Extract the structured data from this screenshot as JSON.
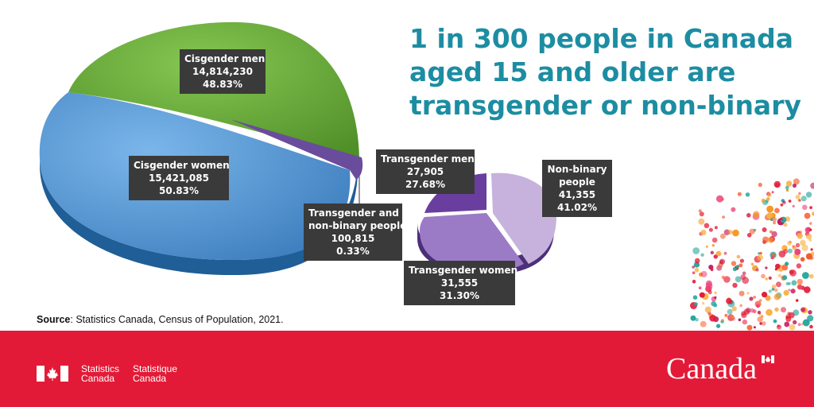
{
  "headline": {
    "line1": "1 in 300 people in Canada",
    "line2": "aged 15 and older are",
    "line3": "transgender or non-binary"
  },
  "chart_data": [
    {
      "type": "pie",
      "slices": [
        {
          "name": "Cisgender men",
          "value": 14814230,
          "value_label": "14,814,230",
          "percent": 48.83,
          "percent_label": "48.83%",
          "color": "#6fac3e"
        },
        {
          "name": "Cisgender women",
          "value": 15421085,
          "value_label": "15,421,085",
          "percent": 50.83,
          "percent_label": "50.83%",
          "color": "#5b9bd6"
        },
        {
          "name_lines": [
            "Transgender and",
            "non-binary people"
          ],
          "value": 100815,
          "value_label": "100,815",
          "percent": 0.33,
          "percent_label": "0.33%",
          "color": "#6a4c9c"
        }
      ]
    },
    {
      "type": "pie",
      "slices": [
        {
          "name": "Transgender men",
          "value": 27905,
          "value_label": "27,905",
          "percent": 27.68,
          "percent_label": "27.68%",
          "color": "#6a3e9e"
        },
        {
          "name": "Transgender women",
          "value": 31555,
          "value_label": "31,555",
          "percent": 31.3,
          "percent_label": "31.30%",
          "color": "#9b7bc6"
        },
        {
          "name_lines": [
            "Non-binary",
            "people"
          ],
          "value": 41355,
          "value_label": "41,355",
          "percent": 41.02,
          "percent_label": "41.02%",
          "color": "#c6b2dc"
        }
      ]
    }
  ],
  "source": {
    "label": "Source",
    "text": ": Statistics Canada, Census of Population, 2021."
  },
  "footer": {
    "signature_en": [
      "Statistics",
      "Canada"
    ],
    "signature_fr": [
      "Statistique",
      "Canada"
    ],
    "wordmark": "Canada"
  }
}
